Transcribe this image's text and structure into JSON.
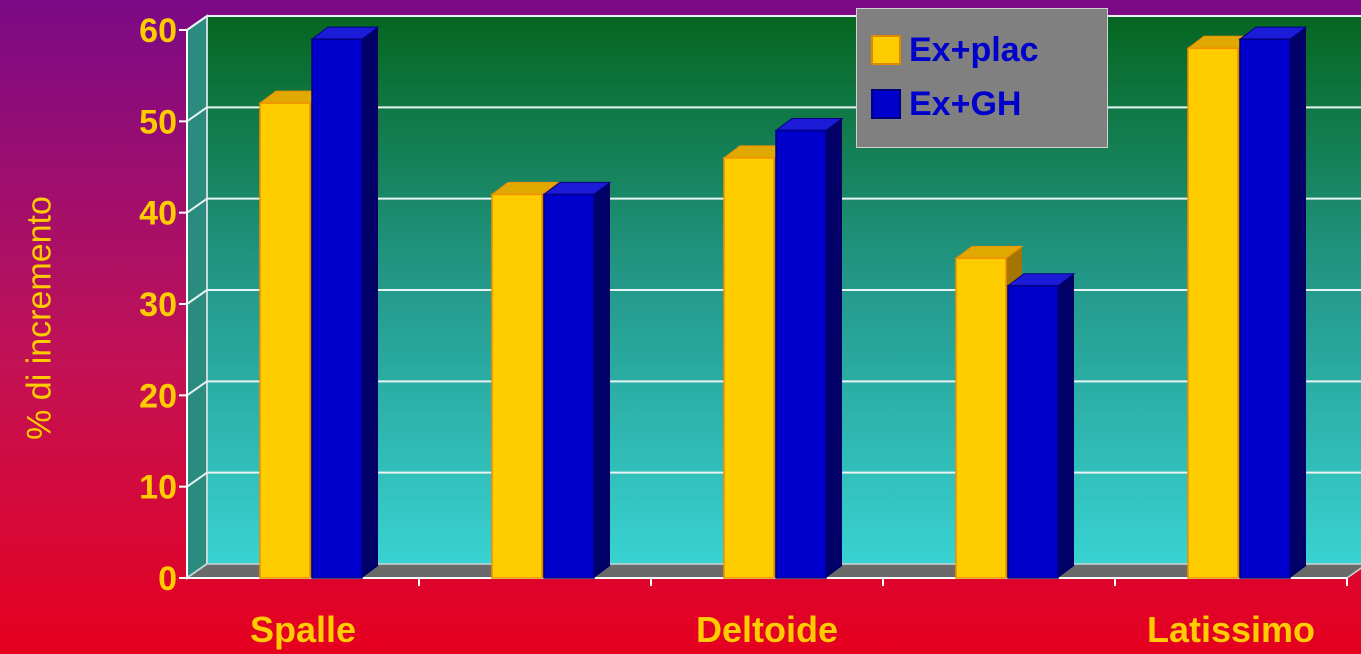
{
  "chart_data": {
    "type": "bar",
    "ylabel": "% di incremento",
    "ylim": [
      0,
      60
    ],
    "yticks": [
      "0",
      "10",
      "20",
      "30",
      "40",
      "50",
      "60"
    ],
    "category_labels": [
      "Spalle",
      "",
      "Deltoide",
      "",
      "Latissimo"
    ],
    "series": [
      {
        "name": "Ex+plac",
        "color": "#ffcc00",
        "values": [
          52,
          42,
          46,
          35,
          58
        ]
      },
      {
        "name": "Ex+GH",
        "color": "#0000cc",
        "values": [
          59,
          42,
          49,
          32,
          59
        ]
      }
    ],
    "legend_position": "top-right",
    "grid": true
  }
}
